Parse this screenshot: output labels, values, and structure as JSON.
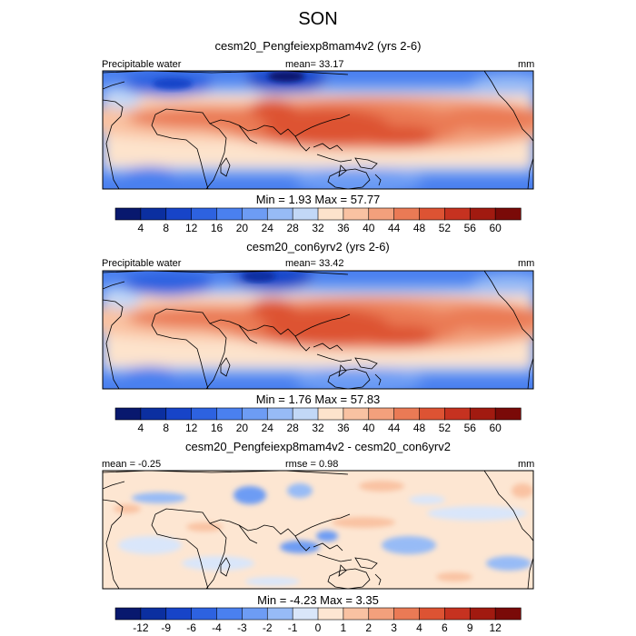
{
  "title": "SON",
  "panels": [
    {
      "subtitle": "cesm20_Pengfeiexp8mam4v2 (yrs 2-6)",
      "left_label": "Precipitable water",
      "center_label": "mean=  33.17",
      "right_label": "mm",
      "minmax": "Min =   1.93 Max =  57.77",
      "colorbar": {
        "levels": [
          "4",
          "8",
          "12",
          "16",
          "20",
          "24",
          "28",
          "32",
          "36",
          "40",
          "44",
          "48",
          "52",
          "56",
          "60"
        ],
        "colors": [
          "#08186e",
          "#0b2fa0",
          "#1744c8",
          "#2d62e0",
          "#4a80ef",
          "#6d9cf4",
          "#97bbf6",
          "#c2d8f7",
          "#fde3cc",
          "#f9c2a2",
          "#f3a07c",
          "#ea7a55",
          "#dd5333",
          "#c63220",
          "#a11a10",
          "#7a0a08"
        ]
      }
    },
    {
      "subtitle": "cesm20_con6yrv2 (yrs 2-6)",
      "left_label": "Precipitable water",
      "center_label": "mean=  33.42",
      "right_label": "mm",
      "minmax": "Min =   1.76 Max =  57.83",
      "colorbar": {
        "levels": [
          "4",
          "8",
          "12",
          "16",
          "20",
          "24",
          "28",
          "32",
          "36",
          "40",
          "44",
          "48",
          "52",
          "56",
          "60"
        ],
        "colors": [
          "#08186e",
          "#0b2fa0",
          "#1744c8",
          "#2d62e0",
          "#4a80ef",
          "#6d9cf4",
          "#97bbf6",
          "#c2d8f7",
          "#fde3cc",
          "#f9c2a2",
          "#f3a07c",
          "#ea7a55",
          "#dd5333",
          "#c63220",
          "#a11a10",
          "#7a0a08"
        ]
      }
    },
    {
      "subtitle": "cesm20_Pengfeiexp8mam4v2 - cesm20_con6yrv2",
      "left_label": "mean =  -0.25",
      "center_label": "rmse =   0.98",
      "right_label": "mm",
      "minmax": "Min =  -4.23 Max =   3.35",
      "colorbar": {
        "levels": [
          "-12",
          "-9",
          "-6",
          "-4",
          "-3",
          "-2",
          "-1",
          "0",
          "1",
          "2",
          "3",
          "4",
          "6",
          "9",
          "12"
        ],
        "colors": [
          "#08186e",
          "#0b2fa0",
          "#1744c8",
          "#2d62e0",
          "#4a80ef",
          "#6d9cf4",
          "#97bbf6",
          "#d9e6fa",
          "#fde6d2",
          "#f9c2a2",
          "#f3a07c",
          "#ea7a55",
          "#dd5333",
          "#c63220",
          "#a11a10",
          "#7a0a08"
        ]
      }
    }
  ],
  "chart_data": [
    {
      "type": "heatmap",
      "title": "cesm20_Pengfeiexp8mam4v2 (yrs 2-6)",
      "variable": "Precipitable water",
      "units": "mm",
      "mean": 33.17,
      "min": 1.93,
      "max": 57.77,
      "levels": [
        4,
        8,
        12,
        16,
        20,
        24,
        28,
        32,
        36,
        40,
        44,
        48,
        52,
        56,
        60
      ]
    },
    {
      "type": "heatmap",
      "title": "cesm20_con6yrv2 (yrs 2-6)",
      "variable": "Precipitable water",
      "units": "mm",
      "mean": 33.42,
      "min": 1.76,
      "max": 57.83,
      "levels": [
        4,
        8,
        12,
        16,
        20,
        24,
        28,
        32,
        36,
        40,
        44,
        48,
        52,
        56,
        60
      ]
    },
    {
      "type": "heatmap",
      "title": "cesm20_Pengfeiexp8mam4v2 - cesm20_con6yrv2",
      "units": "mm",
      "mean": -0.25,
      "rmse": 0.98,
      "min": -4.23,
      "max": 3.35,
      "levels": [
        -12,
        -9,
        -6,
        -4,
        -3,
        -2,
        -1,
        0,
        1,
        2,
        3,
        4,
        6,
        9,
        12
      ]
    }
  ]
}
